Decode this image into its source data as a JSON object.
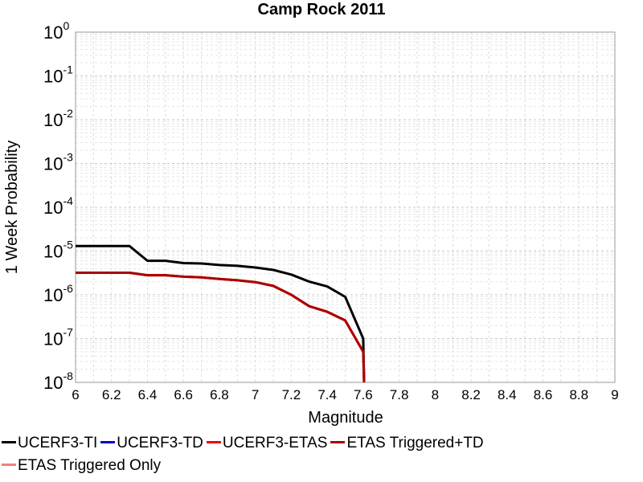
{
  "chart_data": {
    "type": "line",
    "title": "Camp Rock 2011",
    "xlabel": "Magnitude",
    "ylabel": "1 Week Probability",
    "xlim": [
      6,
      9
    ],
    "ylim": [
      1e-08,
      1
    ],
    "yscale": "log",
    "grid": true,
    "legend_position": "bottom",
    "x_ticks": [
      "6",
      "6.2",
      "6.4",
      "6.6",
      "6.8",
      "7",
      "7.2",
      "7.4",
      "7.6",
      "7.8",
      "8",
      "8.2",
      "8.4",
      "8.6",
      "8.8",
      "9"
    ],
    "y_tick_exponents": [
      "0",
      "-1",
      "-2",
      "-3",
      "-4",
      "-5",
      "-6",
      "-7",
      "-8"
    ],
    "series": [
      {
        "name": "UCERF3-TI",
        "color": "#000000",
        "x": [
          6.0,
          6.1,
          6.2,
          6.3,
          6.4,
          6.5,
          6.6,
          6.7,
          6.8,
          6.9,
          7.0,
          7.1,
          7.2,
          7.3,
          7.4,
          7.5,
          7.6,
          7.605
        ],
        "y": [
          1.3e-05,
          1.3e-05,
          1.3e-05,
          1.3e-05,
          6e-06,
          6e-06,
          5.3e-06,
          5.2e-06,
          4.8e-06,
          4.6e-06,
          4.2e-06,
          3.7e-06,
          2.9e-06,
          2e-06,
          1.55e-06,
          9e-07,
          1e-07,
          1e-08
        ]
      },
      {
        "name": "UCERF3-TD",
        "color": "#0000cc",
        "x": [],
        "y": []
      },
      {
        "name": "UCERF3-ETAS",
        "color": "#ee0000",
        "x": [
          6.0,
          6.1,
          6.2,
          6.3,
          6.4,
          6.5,
          6.6,
          6.7,
          6.8,
          6.9,
          7.0,
          7.1,
          7.2,
          7.3,
          7.4,
          7.5,
          7.6,
          7.605
        ],
        "y": [
          3.2e-06,
          3.2e-06,
          3.2e-06,
          3.2e-06,
          2.8e-06,
          2.8e-06,
          2.6e-06,
          2.5e-06,
          2.3e-06,
          2.15e-06,
          1.95e-06,
          1.6e-06,
          1e-06,
          5.5e-07,
          4.1e-07,
          2.6e-07,
          5e-08,
          1e-08
        ]
      },
      {
        "name": "ETAS Triggered+TD",
        "color": "#aa0000",
        "x": [
          6.0,
          6.1,
          6.2,
          6.3,
          6.4,
          6.5,
          6.6,
          6.7,
          6.8,
          6.9,
          7.0,
          7.1,
          7.2,
          7.3,
          7.4,
          7.5,
          7.6,
          7.605
        ],
        "y": [
          3.2e-06,
          3.2e-06,
          3.2e-06,
          3.2e-06,
          2.8e-06,
          2.8e-06,
          2.6e-06,
          2.5e-06,
          2.3e-06,
          2.15e-06,
          1.95e-06,
          1.6e-06,
          1e-06,
          5.5e-07,
          4.1e-07,
          2.6e-07,
          5e-08,
          1e-08
        ]
      },
      {
        "name": "ETAS Triggered Only",
        "color": "#f08080",
        "x": [],
        "y": []
      }
    ]
  }
}
